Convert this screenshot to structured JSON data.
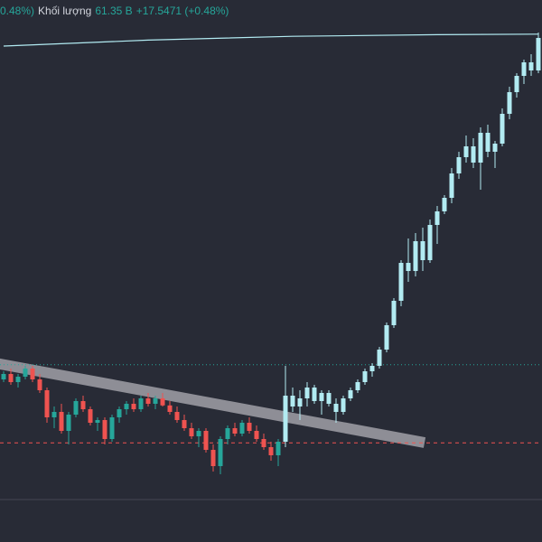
{
  "chart_data": {
    "type": "candlestick",
    "header": [
      {
        "text": "0.48%)",
        "color": "#26a69a"
      },
      {
        "text": "Khối lượng",
        "color": "#d1d4dc"
      },
      {
        "text": "61.35 B",
        "color": "#26a69a"
      },
      {
        "text": "+17.5471 (+0.48%)",
        "color": "#26a69a"
      }
    ],
    "ylim": [
      0,
      100
    ],
    "series": [
      {
        "up_color": "#26a69a",
        "down_color": "#ef5350",
        "x": [
          0,
          1,
          2,
          3,
          4,
          5,
          6,
          7,
          8,
          9,
          10,
          11,
          12,
          13,
          14,
          15,
          16,
          17,
          18,
          19,
          20,
          21,
          22,
          23,
          24,
          25,
          26,
          27,
          28,
          29,
          30,
          31,
          32,
          33,
          34,
          35,
          36,
          37,
          38
        ],
        "open": [
          30,
          31,
          29.5,
          30.5,
          32,
          30,
          28,
          23,
          24,
          20.5,
          23.5,
          26,
          24.5,
          22,
          22.5,
          19,
          23,
          24.5,
          25.5,
          24.5,
          26.5,
          25.5,
          26.5,
          25.2,
          24,
          22.5,
          21,
          19.5,
          20.5,
          17,
          14,
          19,
          21,
          20,
          22,
          20.5,
          19,
          17.5,
          16
        ],
        "high": [
          31.5,
          32,
          31,
          32.5,
          32.5,
          31,
          28.5,
          25,
          25.5,
          24,
          26.5,
          27,
          25,
          23,
          23,
          23.5,
          25,
          26,
          26.5,
          27,
          27.5,
          27,
          27.5,
          26,
          25,
          23.5,
          22,
          21,
          21,
          18,
          19.5,
          21.5,
          22,
          22.5,
          23,
          21.5,
          20,
          18.5,
          19
        ],
        "low": [
          29.5,
          29,
          28.5,
          30,
          29.5,
          27.5,
          22,
          21,
          20,
          18,
          23,
          24,
          21.5,
          20.5,
          18,
          18.5,
          22,
          23.5,
          24,
          24,
          25,
          24.5,
          25,
          23.5,
          22,
          20.5,
          19,
          17.5,
          16.5,
          13,
          12.5,
          18,
          19.5,
          19.5,
          20,
          18.5,
          17,
          15,
          14
        ],
        "close": [
          31,
          29.5,
          30.5,
          32,
          30,
          28,
          23,
          24,
          20.5,
          23.5,
          26,
          24.5,
          22,
          22.5,
          19,
          23,
          24.5,
          25.5,
          24.5,
          26.5,
          25.5,
          26.5,
          25.2,
          24,
          22.5,
          21,
          19.5,
          20.5,
          17,
          14,
          19,
          21,
          20,
          22,
          20.5,
          19,
          17.5,
          16,
          18.5
        ]
      },
      {
        "up_color": "#b2ebf2",
        "down_color": "#b2ebf2",
        "x": [
          39,
          40,
          41,
          42,
          43,
          44,
          45,
          46,
          47,
          48,
          49,
          50,
          51,
          52,
          53,
          54,
          55,
          56,
          57,
          58,
          59,
          60,
          61,
          62,
          63,
          64,
          65,
          66,
          67,
          68,
          69,
          70,
          71,
          72,
          73,
          74
        ],
        "open": [
          18.5,
          27,
          25,
          26.5,
          28.5,
          26,
          27.5,
          25.5,
          24,
          26.5,
          28,
          29.5,
          31.5,
          32.5,
          35.5,
          40,
          44.5,
          51.5,
          50,
          55.5,
          52,
          58.5,
          61,
          63.5,
          68,
          71,
          73,
          70,
          75.5,
          72,
          73.5,
          79,
          83,
          86,
          88.5,
          87
        ],
        "high": [
          32.5,
          28.5,
          28,
          29.5,
          29,
          28,
          28,
          26.5,
          27,
          28.5,
          30,
          32,
          33,
          36,
          40.5,
          45,
          52,
          56,
          57,
          58,
          59.5,
          62,
          64,
          69,
          72,
          75,
          74.5,
          76.5,
          77,
          74,
          80,
          84,
          86.5,
          89,
          90,
          94
        ],
        "low": [
          17.5,
          24,
          22.5,
          25,
          25.5,
          23.5,
          25,
          22,
          23.5,
          26,
          27.5,
          29,
          30.5,
          32,
          35,
          39.5,
          43.5,
          48,
          49,
          50,
          51.5,
          55,
          60.5,
          62.5,
          67,
          70,
          69,
          65,
          71,
          69,
          73,
          78,
          82,
          84.5,
          86,
          86.5
        ],
        "close": [
          27,
          25,
          26.5,
          28.5,
          26,
          27.5,
          25.5,
          24,
          26.5,
          28,
          29.5,
          31.5,
          32.5,
          35.5,
          40,
          44.5,
          51.5,
          50,
          55.5,
          52,
          58.5,
          61,
          63.5,
          68,
          71,
          73,
          70,
          75.5,
          72,
          73.5,
          79,
          83,
          86,
          88.5,
          87,
          93
        ]
      }
    ],
    "ma": {
      "color": "#b2ebf2",
      "x": [
        0,
        20,
        40,
        60,
        74
      ],
      "values": [
        91.5,
        92.6,
        93.3,
        93.6,
        93.7
      ]
    },
    "hlines": [
      {
        "value": 32.7,
        "color": "#26a69a",
        "dash": "1 3"
      },
      {
        "value": 18.3,
        "color": "#ef5350",
        "dash": "4 4"
      }
    ]
  }
}
